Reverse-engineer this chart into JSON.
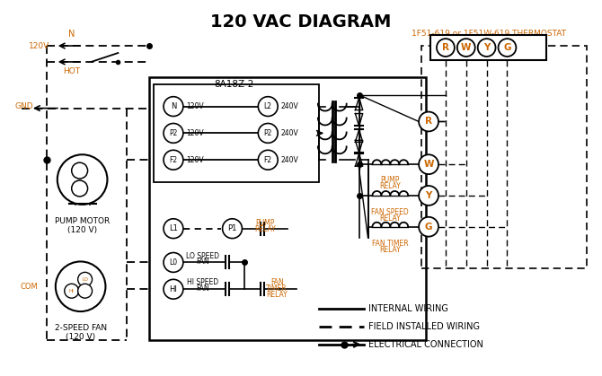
{
  "title": "120 VAC DIAGRAM",
  "bg": "#ffffff",
  "lc": "#000000",
  "oc": "#cc6600",
  "thermostat_label": "1F51-619 or 1F51W-619 THERMOSTAT",
  "box_label": "8A18Z-2"
}
